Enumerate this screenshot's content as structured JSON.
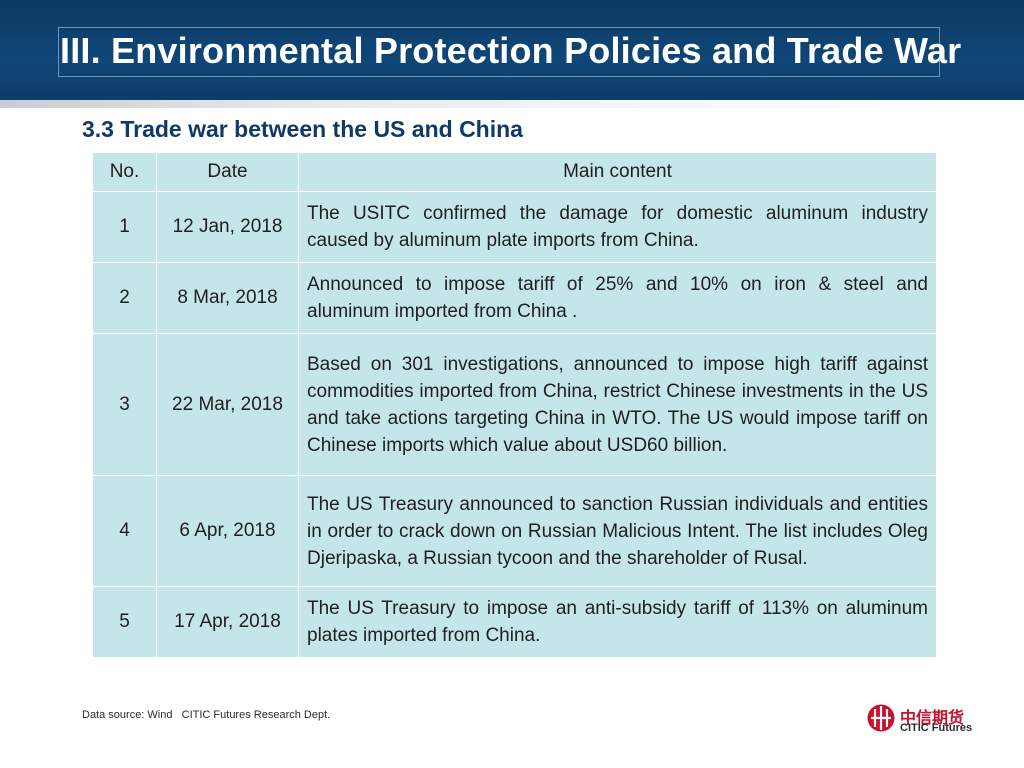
{
  "header": {
    "title": "III. Environmental Protection Policies and Trade War",
    "bg_color": "#0f4677"
  },
  "section": {
    "title": "3.3 Trade war between the US and China"
  },
  "table": {
    "columns": [
      "No.",
      "Date",
      "Main content"
    ],
    "rows": [
      {
        "no": "1",
        "date": "12 Jan, 2018",
        "content": "The USITC confirmed the damage for domestic aluminum industry caused by aluminum plate imports from China."
      },
      {
        "no": "2",
        "date": "8 Mar, 2018",
        "content": "Announced to impose tariff of 25% and 10% on iron & steel and aluminum imported from China ."
      },
      {
        "no": "3",
        "date": "22 Mar, 2018",
        "content": "Based on 301 investigations, announced to impose high tariff against commodities imported from China, restrict Chinese investments in the US and take actions targeting China in WTO. The US would impose tariff on Chinese imports which value about USD60 billion."
      },
      {
        "no": "4",
        "date": "6 Apr, 2018",
        "content": "The US Treasury announced to sanction Russian individuals and entities in order to crack down on Russian Malicious Intent. The list includes Oleg Djeripaska, a Russian tycoon and the shareholder of Rusal."
      },
      {
        "no": "5",
        "date": "17 Apr, 2018",
        "content": "The US Treasury to impose an anti-subsidy tariff of 113% on aluminum plates imported from China."
      }
    ],
    "cell_color": "#c5e6e9"
  },
  "footer": {
    "source": "Data source: Wind   CITIC Futures Research Dept."
  },
  "logo": {
    "icon": "citic-logo-icon",
    "cn_name": "中信期货",
    "en_name": "CITIC Futures",
    "color": "#c8102e"
  }
}
